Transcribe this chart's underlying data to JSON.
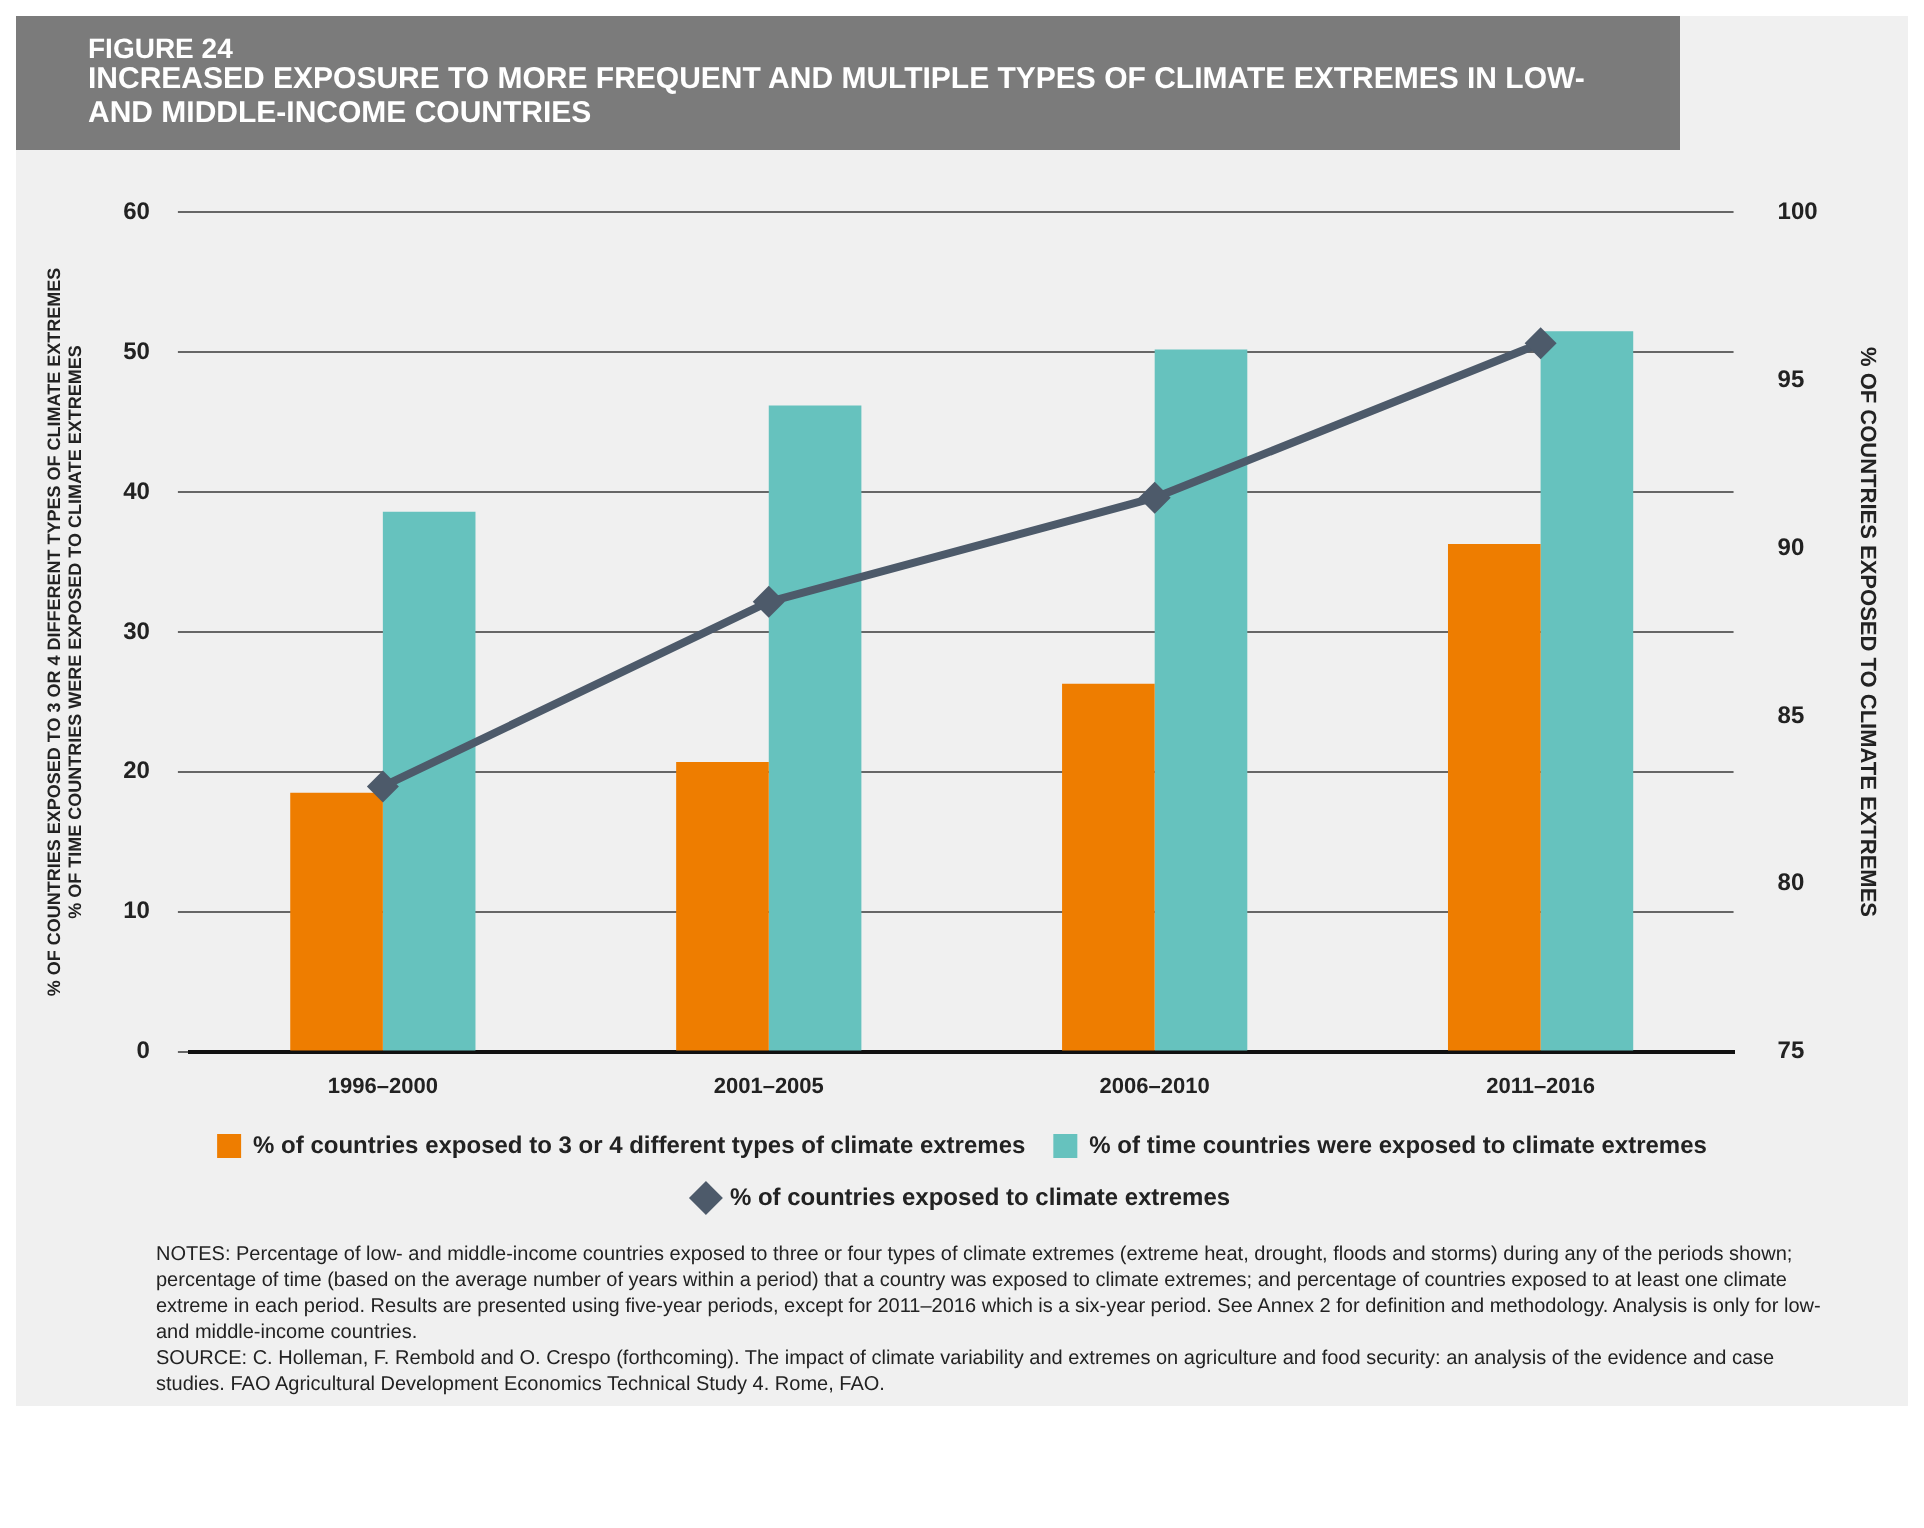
{
  "chart_data": {
    "type": "bar",
    "title": "FIGURE 24",
    "subtitle": "INCREASED EXPOSURE TO MORE FREQUENT AND MULTIPLE TYPES OF CLIMATE EXTREMES IN LOW- AND MIDDLE-INCOME COUNTRIES",
    "ylabel": "% OF COUNTRIES EXPOSED TO 3 OR 4 DIFFERENT TYPES OF CLIMATE EXTREMES\n% OF TIME COUNTRIES WERE EXPOSED TO CLIMATE EXTREMES",
    "y2label": "% OF COUNTRIES EXPOSED TO CLIMATE EXTREMES",
    "categories": [
      "1996–2000",
      "2001–2005",
      "2006–2010",
      "2011–2016"
    ],
    "series": [
      {
        "name": "% of countries exposed to 3 or 4 different types of climate extremes",
        "color": "#ee7d00",
        "values": [
          18.5,
          20.7,
          26.3,
          36.3
        ]
      },
      {
        "name": "% of time countries were exposed to climate extremes",
        "color": "#66c2be",
        "values": [
          38.6,
          46.2,
          50.2,
          51.5
        ]
      },
      {
        "name": "% of countries exposed to climate extremes",
        "type": "line",
        "axis": "y2",
        "color": "#4d5a6a",
        "marker": "diamond",
        "values": [
          82.9,
          88.4,
          91.5,
          96.1
        ]
      }
    ],
    "ylim": [
      0,
      60
    ],
    "yticks": [
      0,
      10,
      20,
      30,
      40,
      50,
      60
    ],
    "y2lim": [
      75,
      100
    ],
    "y2ticks": [
      75,
      80,
      85,
      90,
      95,
      100
    ],
    "grid": "y",
    "legend": "bottom",
    "annotations": [
      "NOTES: Percentage of low- and middle-income countries exposed to three or four types of climate extremes (extreme heat, drought, floods and storms) during any of the periods shown; percentage of time (based on the average number of years within a period) that a country was exposed to climate extremes; and percentage of countries exposed to at least one climate extreme in each period. Results are presented using five-year periods, except for 2011–2016 which is a six-year period. See Annex 2 for definition and methodology. Analysis is only for low- and middle-income countries.",
      "SOURCE: C. Holleman, F. Rembold and O. Crespo (forthcoming). The impact of climate variability and extremes on agriculture and food security: an analysis of the evidence and case studies. FAO Agricultural Development Economics Technical Study 4. Rome, FAO."
    ]
  }
}
